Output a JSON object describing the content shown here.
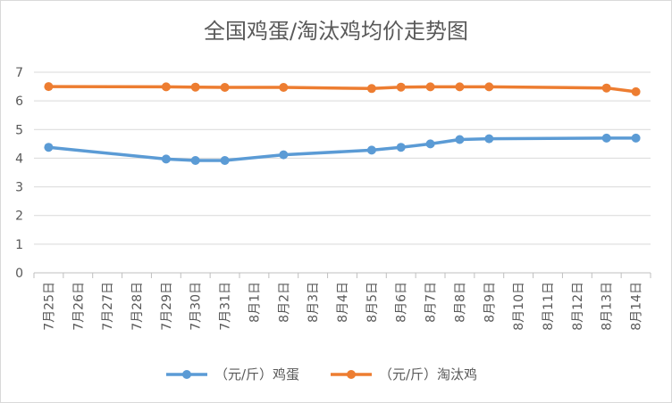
{
  "chart_data": {
    "type": "line",
    "title": "全国鸡蛋/淘汰鸡均价走势图",
    "xlabel": "",
    "ylabel": "",
    "ylim": [
      0,
      7
    ],
    "yticks": [
      0,
      1,
      2,
      3,
      4,
      5,
      6,
      7
    ],
    "grid": true,
    "legend_position": "bottom",
    "categories": [
      "7月25日",
      "7月26日",
      "7月27日",
      "7月28日",
      "7月29日",
      "7月30日",
      "7月31日",
      "8月1日",
      "8月2日",
      "8月3日",
      "8月4日",
      "8月5日",
      "8月6日",
      "8月7日",
      "8月8日",
      "8月9日",
      "8月10日",
      "8月11日",
      "8月12日",
      "8月13日",
      "8月14日"
    ],
    "series": [
      {
        "name": "（元/斤）鸡蛋",
        "color": "#5b9bd5",
        "values": [
          4.38,
          null,
          null,
          null,
          3.97,
          3.92,
          3.92,
          null,
          4.12,
          null,
          null,
          4.28,
          4.38,
          4.5,
          4.65,
          4.68,
          null,
          null,
          null,
          4.7,
          4.7
        ]
      },
      {
        "name": "（元/斤）淘汰鸡",
        "color": "#ed7d31",
        "values": [
          6.5,
          null,
          null,
          null,
          6.49,
          6.48,
          6.47,
          null,
          6.47,
          null,
          null,
          6.43,
          6.48,
          6.49,
          6.49,
          6.49,
          null,
          null,
          null,
          6.45,
          6.32
        ]
      }
    ]
  }
}
